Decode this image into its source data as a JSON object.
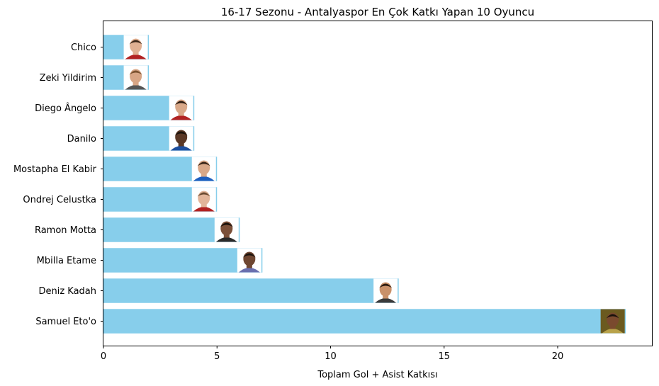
{
  "chart_data": {
    "type": "bar",
    "orientation": "horizontal",
    "title": "16-17 Sezonu - Antalyaspor En Çok Katkı Yapan 10 Oyuncu",
    "xlabel": "Toplam Gol + Asist Katkısı",
    "ylabel": "",
    "categories": [
      "Samuel Eto'o",
      "Deniz Kadah",
      "Mbilla Etame",
      "Ramon Motta",
      "Ondrej Celustka",
      "Mostapha El Kabir",
      "Danilo",
      "Diego Ângelo",
      "Zeki Yildirim",
      "Chico"
    ],
    "values": [
      23,
      13,
      7,
      6,
      5,
      5,
      4,
      4,
      2,
      2
    ],
    "xlim": [
      0,
      24.15
    ],
    "xticks": [
      0,
      5,
      10,
      15,
      20
    ],
    "xtick_labels": [
      "0",
      "5",
      "10",
      "15",
      "20"
    ],
    "grid": false,
    "bar_color": "#87ceeb",
    "bar_end_images": [
      {
        "icon": "player-photo-icon",
        "skin": "#7a4a2e",
        "hair": "#1a120c",
        "shirt": "#b8a24a",
        "bg": "#6b5a1f"
      },
      {
        "icon": "player-photo-icon",
        "skin": "#c9916a",
        "hair": "#2a1a10",
        "shirt": "#3a3a3a",
        "bg": "#ffffff"
      },
      {
        "icon": "player-photo-icon",
        "skin": "#6e4631",
        "hair": "#1a120c",
        "shirt": "#6a6fae",
        "bg": "#ffffff"
      },
      {
        "icon": "player-photo-icon",
        "skin": "#7b5039",
        "hair": "#1a120c",
        "shirt": "#2a2a2a",
        "bg": "#ffffff"
      },
      {
        "icon": "player-photo-icon",
        "skin": "#e2b59a",
        "hair": "#6b4b32",
        "shirt": "#b22222",
        "bg": "#ffffff"
      },
      {
        "icon": "player-photo-icon",
        "skin": "#d9a888",
        "hair": "#3a2618",
        "shirt": "#1e5fbf",
        "bg": "#ffffff"
      },
      {
        "icon": "player-photo-icon",
        "skin": "#5a3826",
        "hair": "#1a120c",
        "shirt": "#1d4f9e",
        "bg": "#ffffff"
      },
      {
        "icon": "player-photo-icon",
        "skin": "#d9a888",
        "hair": "#2a1a10",
        "shirt": "#b22222",
        "bg": "#ffffff"
      },
      {
        "icon": "player-photo-icon",
        "skin": "#d7a585",
        "hair": "#7a5230",
        "shirt": "#555555",
        "bg": "#ffffff"
      },
      {
        "icon": "player-photo-icon",
        "skin": "#e0b092",
        "hair": "#3a2618",
        "shirt": "#b22222",
        "bg": "#ffffff"
      }
    ]
  }
}
